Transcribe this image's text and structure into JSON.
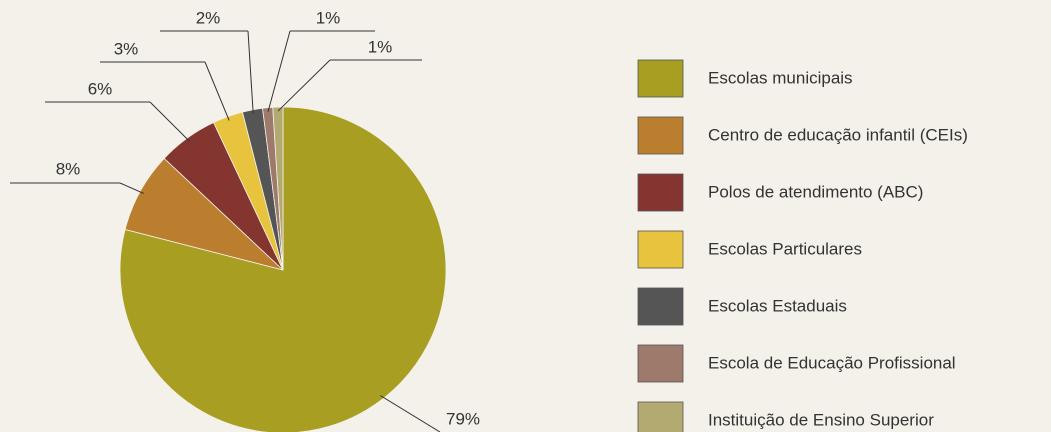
{
  "chart_data": {
    "type": "pie",
    "categories": [
      "Escolas municipais",
      "Centro de educação infantil (CEIs)",
      "Polos de atendimento (ABC)",
      "Escolas Particulares",
      "Escolas Estaduais",
      "Escola de Educação Profissional",
      "Instituição de Ensino Superior"
    ],
    "values": [
      79,
      8,
      6,
      3,
      2,
      1,
      1
    ],
    "value_labels": [
      "79%",
      "8%",
      "6%",
      "3%",
      "2%",
      "1%",
      "1%"
    ],
    "colors": [
      "#a89e22",
      "#bb7d2e",
      "#853530",
      "#e8c33e",
      "#555556",
      "#9e7a6d",
      "#b3aa71"
    ]
  }
}
